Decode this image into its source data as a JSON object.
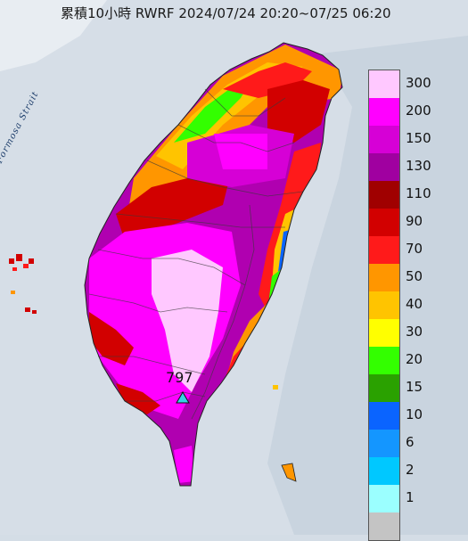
{
  "title": "累積10小時 RWRF 2024/07/24 20:20~07/25 06:20",
  "strait_label": "Formosa Strait",
  "peak": {
    "value": "797",
    "marker": "triangle-marker"
  },
  "legend": [
    {
      "label": "300",
      "color": "#ffc8ff"
    },
    {
      "label": "200",
      "color": "#ff00ff"
    },
    {
      "label": "150",
      "color": "#d600d6"
    },
    {
      "label": "130",
      "color": "#a000a0"
    },
    {
      "label": "110",
      "color": "#a00000"
    },
    {
      "label": "90",
      "color": "#d20000"
    },
    {
      "label": "70",
      "color": "#ff1a1a"
    },
    {
      "label": "50",
      "color": "#ff9600"
    },
    {
      "label": "40",
      "color": "#ffc400"
    },
    {
      "label": "30",
      "color": "#ffff00"
    },
    {
      "label": "20",
      "color": "#33ff00"
    },
    {
      "label": "15",
      "color": "#2aa100"
    },
    {
      "label": "10",
      "color": "#0a64ff"
    },
    {
      "label": "6",
      "color": "#1496ff"
    },
    {
      "label": "2",
      "color": "#00c8ff"
    },
    {
      "label": "1",
      "color": "#9bffff"
    },
    {
      "label": "",
      "color": "#c4c4c4"
    }
  ]
}
